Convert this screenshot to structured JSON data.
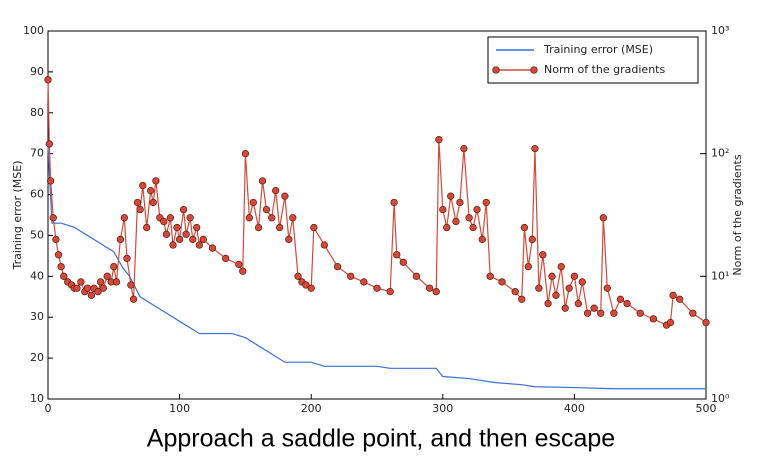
{
  "chart_data": {
    "type": "line",
    "caption": "Approach a saddle point, and then escape",
    "y_label": "Training error (MSE)",
    "y2_label": "Norm of the gradients",
    "xlim": [
      0,
      500
    ],
    "xticks": [
      0,
      100,
      200,
      300,
      400,
      500
    ],
    "ylim": [
      10,
      100
    ],
    "yticks": [
      10,
      20,
      30,
      40,
      50,
      60,
      70,
      80,
      90,
      100
    ],
    "y2lim": [
      1,
      1000
    ],
    "y2log": true,
    "y2ticks": [
      {
        "value": 1,
        "label": "10⁰"
      },
      {
        "value": 10,
        "label": "10¹"
      },
      {
        "value": 100,
        "label": "10²"
      },
      {
        "value": 1000,
        "label": "10³"
      }
    ],
    "legend": "upper right",
    "series": [
      {
        "name": "Training error (MSE)",
        "color": "#3a6fd8",
        "axis": "y",
        "markers": false,
        "x": [
          0,
          3,
          10,
          20,
          30,
          40,
          50,
          57,
          62,
          70,
          80,
          90,
          100,
          110,
          115,
          140,
          150,
          160,
          170,
          180,
          200,
          210,
          250,
          260,
          295,
          300,
          320,
          340,
          360,
          370,
          400,
          430,
          500
        ],
        "values": [
          72,
          53,
          53,
          52,
          50,
          48,
          46,
          42,
          40,
          35,
          33,
          31,
          29,
          27,
          26,
          26,
          25,
          23,
          21,
          19,
          19,
          18,
          18,
          17.5,
          17.5,
          15.5,
          15,
          14,
          13.5,
          13,
          12.8,
          12.5,
          12.5
        ]
      },
      {
        "name": "Norm of the gradients",
        "color": "#d44a3a",
        "axis": "y2",
        "markers": true,
        "x": [
          0,
          1,
          2,
          4,
          6,
          8,
          10,
          12,
          15,
          18,
          20,
          22,
          25,
          28,
          30,
          33,
          35,
          38,
          40,
          42,
          45,
          48,
          50,
          52,
          55,
          58,
          60,
          63,
          65,
          68,
          70,
          72,
          75,
          78,
          80,
          82,
          85,
          88,
          90,
          93,
          95,
          98,
          100,
          103,
          105,
          108,
          110,
          113,
          115,
          118,
          125,
          135,
          145,
          148,
          150,
          153,
          156,
          160,
          163,
          166,
          170,
          173,
          176,
          180,
          183,
          186,
          190,
          193,
          196,
          200,
          202,
          210,
          220,
          230,
          240,
          250,
          260,
          263,
          265,
          270,
          280,
          290,
          295,
          297,
          300,
          303,
          306,
          310,
          313,
          316,
          320,
          323,
          326,
          330,
          333,
          336,
          345,
          355,
          360,
          362,
          365,
          368,
          370,
          373,
          376,
          380,
          383,
          386,
          390,
          393,
          396,
          400,
          403,
          406,
          410,
          415,
          420,
          422,
          425,
          430,
          435,
          440,
          450,
          460,
          470,
          473,
          475,
          480,
          490,
          500
        ],
        "values": [
          400,
          120,
          60,
          30,
          20,
          15,
          12,
          10,
          9,
          8.5,
          8,
          8,
          9,
          7.5,
          8,
          7,
          8,
          7.5,
          9,
          8,
          10,
          9,
          12,
          9,
          20,
          30,
          14,
          8.5,
          6.5,
          40,
          35,
          55,
          25,
          50,
          40,
          60,
          30,
          28,
          22,
          30,
          18,
          25,
          20,
          35,
          22,
          30,
          20,
          25,
          18,
          20,
          17,
          14,
          12.5,
          11,
          100,
          30,
          40,
          25,
          60,
          35,
          30,
          50,
          25,
          45,
          20,
          30,
          10,
          9,
          8.5,
          8,
          25,
          18,
          12,
          10,
          9,
          8,
          7.5,
          40,
          15,
          13,
          10,
          8,
          7.5,
          130,
          35,
          25,
          45,
          28,
          40,
          110,
          30,
          25,
          35,
          20,
          40,
          10,
          9,
          7.5,
          6.5,
          25,
          12,
          20,
          110,
          8,
          15,
          6,
          10,
          7,
          12,
          5.5,
          8,
          10,
          6,
          9,
          5,
          5.5,
          5,
          30,
          8,
          5,
          6.5,
          6,
          5,
          4.5,
          4,
          4.2,
          7,
          6.5,
          5,
          4.2
        ]
      }
    ]
  }
}
